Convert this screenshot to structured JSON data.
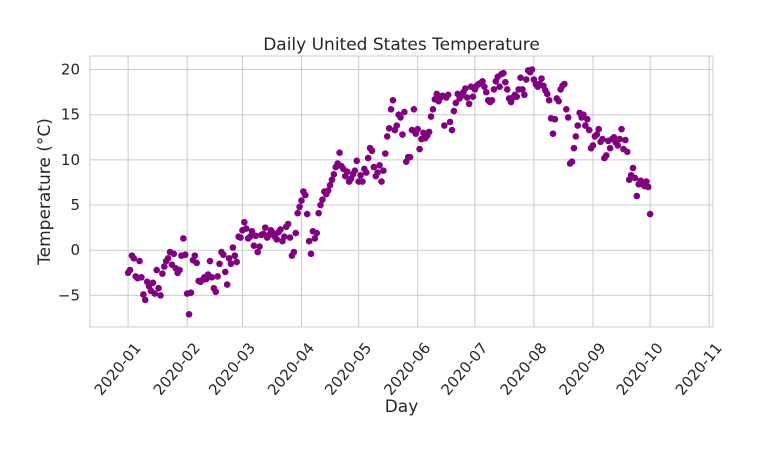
{
  "chart_data": {
    "type": "scatter",
    "title": "Daily United States Temperature",
    "xlabel": "Day",
    "ylabel": "Temperature (°C)",
    "marker_color": "#800080",
    "grid": true,
    "xlim": [
      "2019-12-12",
      "2020-11-03"
    ],
    "ylim": [
      -8.5,
      21.5
    ],
    "x_ticks": [
      "2020-01",
      "2020-02",
      "2020-03",
      "2020-04",
      "2020-05",
      "2020-06",
      "2020-07",
      "2020-08",
      "2020-09",
      "2020-10",
      "2020-11"
    ],
    "y_ticks": [
      -5,
      0,
      5,
      10,
      15,
      20
    ],
    "x_tick_dates": [
      "2020-01-01",
      "2020-02-01",
      "2020-03-01",
      "2020-04-01",
      "2020-05-01",
      "2020-06-01",
      "2020-07-01",
      "2020-08-01",
      "2020-09-01",
      "2020-10-01",
      "2020-11-01"
    ],
    "y_tick_labels": [
      "−5",
      "0",
      "5",
      "10",
      "15",
      "20"
    ],
    "start_date": "2020-01-01",
    "values": [
      -2.5,
      -2.2,
      -0.6,
      -0.9,
      -2.9,
      -3.1,
      -1.2,
      -3.0,
      -4.9,
      -5.5,
      -3.5,
      -4.0,
      -4.5,
      -3.6,
      -4.8,
      -2.2,
      -4.2,
      -5.0,
      -2.6,
      -1.8,
      -1.2,
      -0.9,
      -0.2,
      -1.6,
      -0.4,
      -2.0,
      -2.5,
      -2.2,
      -0.6,
      1.3,
      -0.5,
      -4.8,
      -7.1,
      -4.7,
      -1.1,
      -0.6,
      -1.4,
      -3.4,
      -3.5,
      -3.3,
      -3.0,
      -3.2,
      -2.7,
      -1.2,
      -3.0,
      -4.2,
      -4.6,
      -2.9,
      -1.5,
      -0.2,
      -0.5,
      -2.4,
      -3.8,
      -0.9,
      -1.5,
      0.3,
      -0.6,
      -1.3,
      1.5,
      1.4,
      2.2,
      3.1,
      2.4,
      1.3,
      1.5,
      2.1,
      0.5,
      1.6,
      -0.2,
      0.4,
      1.7,
      1.8,
      2.5,
      1.4,
      1.7,
      2.2,
      1.9,
      1.5,
      1.2,
      2.0,
      2.3,
      1.0,
      1.5,
      2.6,
      2.9,
      1.4,
      -0.6,
      -0.2,
      1.9,
      4.1,
      4.8,
      5.5,
      6.5,
      6.1,
      4.0,
      1.0,
      -0.4,
      2.1,
      1.3,
      1.9,
      4.1,
      5.0,
      5.6,
      6.5,
      6.2,
      6.6,
      7.2,
      7.8,
      8.4,
      9.2,
      9.6,
      10.8,
      9.3,
      9.0,
      8.2,
      8.7,
      7.6,
      7.9,
      8.4,
      8.8,
      9.9,
      7.6,
      8.3,
      7.6,
      9.0,
      8.6,
      10.2,
      11.3,
      11.0,
      9.2,
      8.2,
      8.6,
      9.4,
      7.6,
      8.8,
      10.7,
      12.6,
      13.5,
      15.6,
      16.6,
      13.3,
      13.8,
      15.0,
      14.7,
      12.8,
      15.3,
      9.8,
      10.3,
      10.3,
      13.3,
      15.6,
      12.9,
      13.4,
      11.2,
      12.3,
      13.0,
      12.4,
      12.7,
      13.1,
      14.8,
      15.6,
      16.7,
      17.3,
      16.5,
      16.9,
      17.1,
      13.8,
      16.9,
      17.2,
      14.2,
      13.3,
      15.4,
      16.3,
      17.3,
      16.8,
      17.1,
      17.5,
      17.9,
      16.9,
      16.2,
      18.1,
      17.0,
      17.8,
      18.2,
      18.4,
      18.5,
      18.7,
      18.1,
      17.5,
      16.6,
      16.4,
      16.6,
      17.8,
      18.7,
      19.2,
      18.1,
      19.5,
      19.6,
      18.6,
      17.8,
      16.8,
      16.4,
      16.9,
      17.2,
      17.0,
      17.8,
      19.1,
      17.8,
      17.2,
      18.9,
      19.9,
      19.7,
      20.0,
      18.9,
      18.4,
      18.1,
      18.4,
      19.0,
      18.2,
      17.7,
      17.3,
      16.6,
      14.6,
      12.9,
      14.5,
      16.8,
      16.5,
      17.8,
      18.2,
      18.4,
      15.6,
      14.7,
      9.6,
      9.8,
      11.3,
      12.6,
      13.8,
      15.2,
      14.7,
      15.0,
      13.8,
      14.5,
      13.3,
      11.3,
      11.6,
      12.6,
      12.8,
      13.4,
      12.0,
      12.3,
      10.2,
      10.5,
      12.1,
      11.3,
      12.3,
      12.5,
      11.9,
      11.6,
      12.3,
      13.4,
      11.2,
      12.2,
      10.9,
      7.8,
      8.3,
      9.1,
      8.0,
      6.0,
      7.3,
      7.7,
      7.5,
      7.1,
      7.6,
      7.0,
      4.0
    ]
  }
}
